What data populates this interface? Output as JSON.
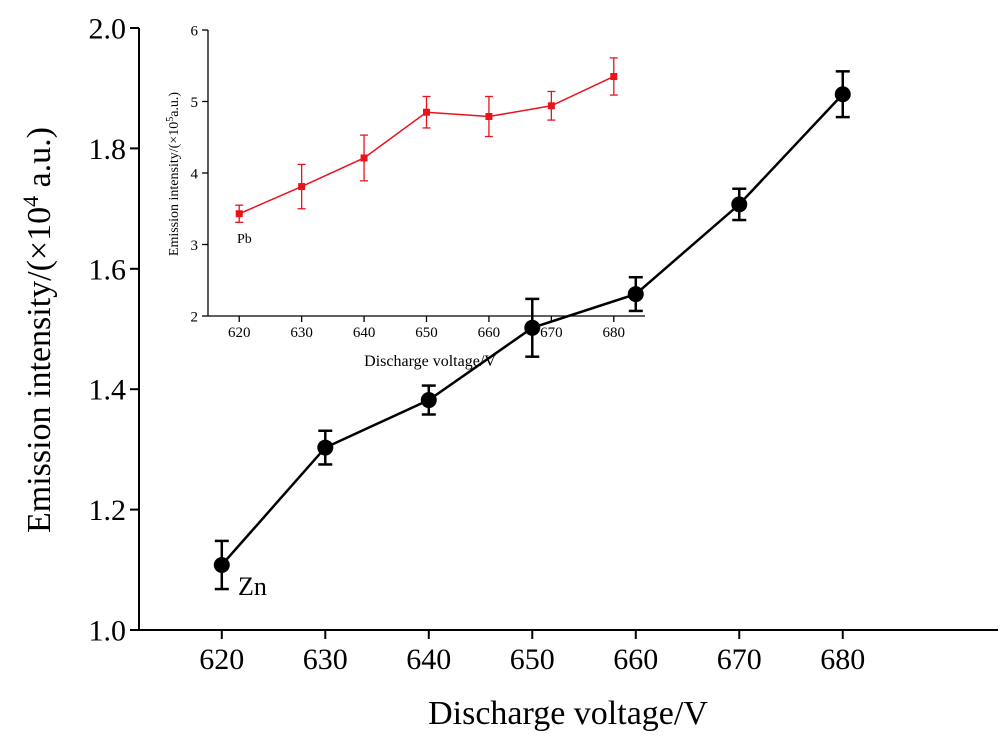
{
  "chart_data": [
    {
      "id": "main",
      "type": "line",
      "xlabel": "Discharge voltage/V",
      "ylabel_prefix": "Emission intensity/(×10",
      "ylabel_exp": "4",
      "ylabel_suffix": " a.u.)",
      "annotation": "Zn",
      "xlim": [
        612,
        695
      ],
      "ylim": [
        1.0,
        2.0
      ],
      "x_ticks": [
        620,
        630,
        640,
        650,
        660,
        670,
        680
      ],
      "y_ticks": [
        1.0,
        1.2,
        1.4,
        1.6,
        1.8,
        2.0
      ],
      "x_tick_labels": [
        "620",
        "630",
        "640",
        "650",
        "660",
        "670",
        "680"
      ],
      "y_tick_labels": [
        "1.0",
        "1.2",
        "1.4",
        "1.6",
        "1.8",
        "2.0"
      ],
      "color": "#000000",
      "series": [
        {
          "x": [
            620,
            630,
            640,
            650,
            660,
            670,
            680
          ],
          "y": [
            1.108,
            1.303,
            1.382,
            1.502,
            1.558,
            1.707,
            1.89
          ],
          "err": [
            0.04,
            0.028,
            0.024,
            0.048,
            0.028,
            0.026,
            0.038
          ]
        }
      ]
    },
    {
      "id": "inset",
      "type": "line",
      "xlabel": "Discharge voltage/V",
      "ylabel_prefix": "Emission intensity/(×10",
      "ylabel_exp": "5",
      "ylabel_suffix": "a.u.)",
      "annotation": "Pb",
      "xlim": [
        615,
        685
      ],
      "ylim": [
        2,
        6
      ],
      "x_ticks": [
        620,
        630,
        640,
        650,
        660,
        670,
        680
      ],
      "y_ticks": [
        2,
        3,
        4,
        5,
        6
      ],
      "x_tick_labels": [
        "620",
        "630",
        "640",
        "650",
        "660",
        "670",
        "680"
      ],
      "y_tick_labels": [
        "2",
        "3",
        "4",
        "5",
        "6"
      ],
      "color": "#e8141c",
      "series": [
        {
          "x": [
            620,
            630,
            640,
            650,
            660,
            670,
            680
          ],
          "y": [
            3.43,
            3.81,
            4.21,
            4.85,
            4.79,
            4.94,
            5.35
          ],
          "err": [
            0.12,
            0.31,
            0.32,
            0.22,
            0.28,
            0.2,
            0.26
          ]
        }
      ]
    }
  ]
}
